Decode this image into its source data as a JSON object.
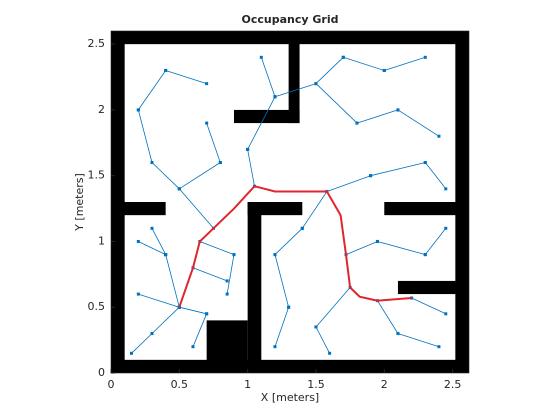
{
  "chart_data": {
    "type": "occupancy",
    "title": "Occupancy Grid",
    "xlabel": "X [meters]",
    "ylabel": "Y [meters]",
    "xlim": [
      0,
      2.62
    ],
    "ylim": [
      0,
      2.6
    ],
    "xticks": [
      0,
      0.5,
      1,
      1.5,
      2,
      2.5
    ],
    "yticks": [
      0,
      0.5,
      1,
      1.5,
      2,
      2.5
    ],
    "obstacle_color": "#000000",
    "obstacles": [
      {
        "x": [
          0,
          0.1
        ],
        "y": [
          0,
          2.6
        ]
      },
      {
        "x": [
          0,
          2.62
        ],
        "y": [
          2.5,
          2.6
        ]
      },
      {
        "x": [
          2.52,
          2.62
        ],
        "y": [
          0,
          2.6
        ]
      },
      {
        "x": [
          0,
          2.62
        ],
        "y": [
          0,
          0.1
        ]
      },
      {
        "x": [
          1.3,
          1.38
        ],
        "y": [
          1.9,
          2.6
        ]
      },
      {
        "x": [
          0.9,
          1.38
        ],
        "y": [
          1.9,
          2.0
        ]
      },
      {
        "x": [
          0,
          0.4
        ],
        "y": [
          1.2,
          1.3
        ]
      },
      {
        "x": [
          1.0,
          1.4
        ],
        "y": [
          1.2,
          1.3
        ]
      },
      {
        "x": [
          1.0,
          1.1
        ],
        "y": [
          0,
          1.3
        ]
      },
      {
        "x": [
          0.7,
          1.0
        ],
        "y": [
          0,
          0.4
        ]
      },
      {
        "x": [
          2.0,
          2.62
        ],
        "y": [
          1.2,
          1.3
        ]
      },
      {
        "x": [
          2.1,
          2.62
        ],
        "y": [
          0.6,
          0.7
        ]
      }
    ],
    "series": [
      {
        "color": "#0072bd",
        "x": [
          0.5,
          0.3,
          null,
          0.5,
          0.2,
          null,
          0.5,
          0.7,
          null,
          0.5,
          0.4,
          null,
          0.4,
          0.2,
          null,
          0.4,
          0.3,
          null,
          0.6,
          0.85,
          null,
          0.65,
          0.9,
          null,
          0.75,
          0.5,
          null,
          0.5,
          0.3,
          null,
          0.3,
          0.2,
          null,
          0.2,
          0.4,
          null,
          0.4,
          0.7,
          null,
          0.5,
          0.8,
          null,
          0.8,
          0.7,
          null,
          1.05,
          1.0,
          null,
          1.0,
          1.2,
          null,
          1.2,
          1.1,
          null,
          1.2,
          1.5,
          null,
          1.5,
          1.7,
          null,
          1.7,
          2.0,
          null,
          2.0,
          2.3,
          null,
          1.5,
          1.8,
          null,
          1.8,
          2.1,
          null,
          2.1,
          2.4,
          null,
          1.58,
          1.9,
          null,
          1.9,
          2.3,
          null,
          2.3,
          2.45,
          null,
          1.58,
          1.4,
          null,
          1.4,
          1.2,
          null,
          1.2,
          1.3,
          null,
          1.3,
          1.2,
          null,
          1.72,
          1.95,
          null,
          1.95,
          2.3,
          null,
          2.3,
          2.45,
          null,
          1.75,
          1.5,
          null,
          1.5,
          1.6,
          null,
          1.95,
          2.1,
          null,
          2.1,
          2.4,
          null,
          2.2,
          2.45,
          null,
          0.3,
          0.15,
          null,
          0.7,
          0.6,
          null,
          0.9,
          0.85
        ],
        "y": [
          0.5,
          0.3,
          null,
          0.5,
          0.6,
          null,
          0.5,
          0.45,
          null,
          0.5,
          0.9,
          null,
          0.9,
          1.0,
          null,
          0.9,
          1.1,
          null,
          0.8,
          0.7,
          null,
          1.0,
          0.9,
          null,
          1.1,
          1.4,
          null,
          1.4,
          1.6,
          null,
          1.6,
          2.0,
          null,
          2.0,
          2.3,
          null,
          2.3,
          2.2,
          null,
          1.4,
          1.6,
          null,
          1.6,
          1.9,
          null,
          1.42,
          1.7,
          null,
          1.7,
          2.1,
          null,
          2.1,
          2.4,
          null,
          2.1,
          2.2,
          null,
          2.2,
          2.4,
          null,
          2.4,
          2.3,
          null,
          2.3,
          2.4,
          null,
          2.2,
          1.9,
          null,
          1.9,
          2.0,
          null,
          2.0,
          1.8,
          null,
          1.38,
          1.5,
          null,
          1.5,
          1.6,
          null,
          1.6,
          1.4,
          null,
          1.38,
          1.1,
          null,
          1.1,
          0.9,
          null,
          0.9,
          0.5,
          null,
          0.5,
          0.2,
          null,
          0.9,
          1.0,
          null,
          1.0,
          0.9,
          null,
          0.9,
          1.1,
          null,
          0.65,
          0.35,
          null,
          0.35,
          0.15,
          null,
          0.55,
          0.3,
          null,
          0.3,
          0.2,
          null,
          0.57,
          0.45,
          null,
          0.3,
          0.15,
          null,
          0.45,
          0.2,
          null,
          0.9,
          0.6
        ],
        "markers": true
      },
      {
        "color": "#e0262c",
        "x": [
          0.5,
          0.6,
          0.65,
          0.75,
          0.9,
          1.05,
          1.2,
          1.35,
          1.58,
          1.68,
          1.72,
          1.75,
          1.82,
          1.95,
          2.2
        ],
        "y": [
          0.5,
          0.8,
          1.0,
          1.1,
          1.25,
          1.42,
          1.38,
          1.38,
          1.38,
          1.2,
          0.9,
          0.65,
          0.58,
          0.55,
          0.57
        ],
        "markers": false
      }
    ]
  }
}
